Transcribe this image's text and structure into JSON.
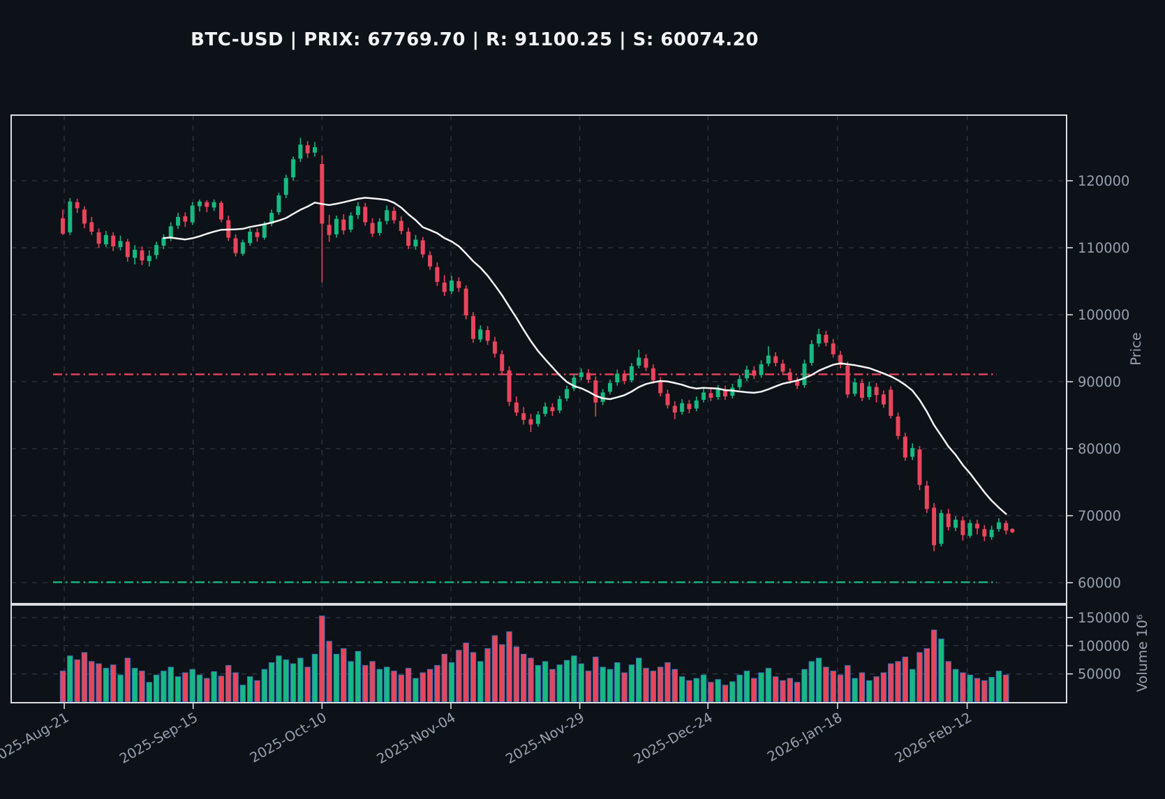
{
  "title": "BTC-USD | PRIX: 67769.70 | R: 91100.25 | S: 60074.20",
  "chart_data": {
    "type": "candlestick",
    "symbol": "BTC-USD",
    "last_price": 67769.7,
    "resistance": 91100.25,
    "support": 60074.2,
    "ma_window": 15,
    "legend_position": "none",
    "grid": true,
    "price_axis": {
      "label": "Price",
      "ticks": [
        120000,
        110000,
        100000,
        90000,
        80000,
        70000,
        60000
      ],
      "range": [
        56900,
        129800
      ]
    },
    "volume_axis": {
      "label": "Volume",
      "unit": "10⁶",
      "ticks": [
        150000,
        100000,
        50000
      ],
      "range": [
        0,
        174000
      ]
    },
    "x_axis": {
      "tick_labels": [
        "2025-Aug-21",
        "2025-Sep-15",
        "2025-Oct-10",
        "2025-Nov-04",
        "2025-Nov-29",
        "2025-Dec-24",
        "2026-Jan-18",
        "2026-Feb-12"
      ],
      "tick_positions_bar_index": [
        0.2,
        18.1,
        36.0,
        53.9,
        71.8,
        89.6,
        107.6,
        125.6
      ]
    },
    "colors": {
      "up": "#17b981",
      "down": "#e8455c",
      "ma_line": "#f5f5f5",
      "resistance": "#e8455c",
      "support": "#17b981",
      "background": "#0d1118",
      "grid": "#363c49",
      "text": "#97a1b0",
      "border": "#dcdde1",
      "volume_edge": "#3574b5"
    },
    "candles": [
      [
        114400,
        115700,
        111900,
        112100
      ],
      [
        112300,
        117400,
        111900,
        116900
      ],
      [
        116800,
        117300,
        115200,
        115900
      ],
      [
        115700,
        116200,
        112900,
        113600
      ],
      [
        113800,
        114600,
        111900,
        112400
      ],
      [
        112300,
        112900,
        110000,
        110600
      ],
      [
        110500,
        112500,
        110100,
        111900
      ],
      [
        111800,
        112300,
        109500,
        110200
      ],
      [
        110100,
        111800,
        109600,
        111000
      ],
      [
        110900,
        111300,
        107900,
        108600
      ],
      [
        108500,
        110400,
        107500,
        109700
      ],
      [
        109600,
        110200,
        107400,
        108100
      ],
      [
        108000,
        109600,
        107200,
        108800
      ],
      [
        108900,
        110900,
        108300,
        110400
      ],
      [
        110300,
        112000,
        109800,
        111500
      ],
      [
        111400,
        113800,
        111000,
        113200
      ],
      [
        113300,
        115200,
        112800,
        114600
      ],
      [
        114700,
        115300,
        113100,
        113900
      ],
      [
        113800,
        116800,
        113400,
        116300
      ],
      [
        116200,
        117200,
        115400,
        116900
      ],
      [
        116800,
        117100,
        115300,
        116100
      ],
      [
        116000,
        117200,
        115500,
        116800
      ],
      [
        116700,
        117000,
        113800,
        114200
      ],
      [
        114100,
        114800,
        111000,
        111500
      ],
      [
        111400,
        112000,
        108700,
        109200
      ],
      [
        109100,
        111200,
        108800,
        110800
      ],
      [
        110700,
        112900,
        110300,
        112400
      ],
      [
        112300,
        112900,
        110900,
        111600
      ],
      [
        111500,
        113900,
        111200,
        113500
      ],
      [
        113600,
        115700,
        113200,
        115200
      ],
      [
        115300,
        118200,
        114900,
        117800
      ],
      [
        117900,
        120900,
        117400,
        120400
      ],
      [
        120500,
        123600,
        120000,
        123200
      ],
      [
        123300,
        126400,
        122800,
        125400
      ],
      [
        125300,
        125900,
        123400,
        124100
      ],
      [
        124200,
        125800,
        123600,
        125000
      ],
      [
        122500,
        123800,
        104800,
        113600
      ],
      [
        113400,
        114900,
        110900,
        111900
      ],
      [
        112000,
        114800,
        111500,
        114300
      ],
      [
        114200,
        115000,
        112000,
        112600
      ],
      [
        112700,
        115300,
        112300,
        114800
      ],
      [
        114900,
        116800,
        114300,
        116200
      ],
      [
        116100,
        116700,
        113300,
        113800
      ],
      [
        113700,
        114400,
        111600,
        112100
      ],
      [
        112200,
        114400,
        111800,
        113900
      ],
      [
        114000,
        116300,
        113500,
        115600
      ],
      [
        115500,
        116100,
        113600,
        114100
      ],
      [
        114000,
        114700,
        112000,
        112500
      ],
      [
        112400,
        113000,
        109800,
        110300
      ],
      [
        110200,
        111900,
        109700,
        111200
      ],
      [
        111100,
        111600,
        108500,
        109000
      ],
      [
        108900,
        109500,
        106700,
        107200
      ],
      [
        107100,
        107800,
        104300,
        104900
      ],
      [
        104800,
        105900,
        102800,
        103400
      ],
      [
        103500,
        105800,
        103100,
        105100
      ],
      [
        105000,
        105600,
        103400,
        104000
      ],
      [
        103900,
        104400,
        99300,
        99900
      ],
      [
        99800,
        100400,
        95800,
        96400
      ],
      [
        96300,
        98400,
        95900,
        97800
      ],
      [
        97700,
        98300,
        95500,
        96100
      ],
      [
        96000,
        96700,
        93600,
        94200
      ],
      [
        94100,
        94700,
        91000,
        91600
      ],
      [
        91700,
        92300,
        86400,
        87000
      ],
      [
        86900,
        87800,
        84900,
        85400
      ],
      [
        85300,
        86200,
        83600,
        84300
      ],
      [
        84400,
        85200,
        82500,
        83600
      ],
      [
        83700,
        85600,
        83300,
        85100
      ],
      [
        85200,
        86900,
        84800,
        86300
      ],
      [
        86200,
        86800,
        84900,
        85600
      ],
      [
        85700,
        87900,
        85300,
        87400
      ],
      [
        87500,
        89400,
        87100,
        88900
      ],
      [
        89000,
        91100,
        88600,
        90600
      ],
      [
        90700,
        92000,
        90200,
        91400
      ],
      [
        91300,
        91900,
        89800,
        90300
      ],
      [
        90200,
        90800,
        84800,
        86900
      ],
      [
        87000,
        88900,
        86500,
        88400
      ],
      [
        88500,
        90300,
        88100,
        89800
      ],
      [
        89900,
        91800,
        89400,
        91200
      ],
      [
        91100,
        91700,
        89600,
        90100
      ],
      [
        90200,
        92800,
        89900,
        92300
      ],
      [
        92400,
        94800,
        92000,
        93600
      ],
      [
        93500,
        94100,
        91600,
        92100
      ],
      [
        92000,
        92600,
        89700,
        90200
      ],
      [
        90100,
        90700,
        87800,
        88300
      ],
      [
        88200,
        88800,
        86000,
        86500
      ],
      [
        86400,
        87100,
        84400,
        85400
      ],
      [
        85500,
        87400,
        85100,
        86800
      ],
      [
        86700,
        87300,
        85300,
        85900
      ],
      [
        86000,
        87800,
        85600,
        87200
      ],
      [
        87300,
        89100,
        86900,
        88400
      ],
      [
        88300,
        89000,
        87100,
        87600
      ],
      [
        87700,
        89500,
        87300,
        88900
      ],
      [
        88800,
        89400,
        87300,
        87800
      ],
      [
        87900,
        89700,
        87500,
        89100
      ],
      [
        89200,
        91000,
        88800,
        90400
      ],
      [
        90500,
        92400,
        90100,
        91800
      ],
      [
        91700,
        92300,
        90400,
        90900
      ],
      [
        91000,
        93200,
        90600,
        92600
      ],
      [
        92700,
        95300,
        92300,
        93900
      ],
      [
        93800,
        94400,
        92300,
        92800
      ],
      [
        92700,
        93300,
        91000,
        91500
      ],
      [
        91400,
        92000,
        89700,
        90200
      ],
      [
        90100,
        90700,
        88900,
        89400
      ],
      [
        89500,
        93300,
        89100,
        92700
      ],
      [
        92800,
        96200,
        92400,
        95600
      ],
      [
        95700,
        97900,
        95200,
        97100
      ],
      [
        97000,
        97600,
        95300,
        95800
      ],
      [
        95700,
        96400,
        93600,
        94100
      ],
      [
        94000,
        94600,
        92000,
        92500
      ],
      [
        92400,
        93000,
        87600,
        88100
      ],
      [
        88200,
        90500,
        87800,
        89900
      ],
      [
        89800,
        90400,
        87100,
        87600
      ],
      [
        87700,
        90000,
        87300,
        89300
      ],
      [
        89200,
        89800,
        86900,
        88000
      ],
      [
        88100,
        88700,
        86100,
        86600
      ],
      [
        88800,
        89300,
        84500,
        84900
      ],
      [
        84800,
        85400,
        81400,
        81900
      ],
      [
        81800,
        82400,
        78200,
        78700
      ],
      [
        78800,
        80800,
        78300,
        80100
      ],
      [
        79900,
        80400,
        73800,
        74600
      ],
      [
        74500,
        75200,
        70400,
        71000
      ],
      [
        71200,
        71900,
        64700,
        65600
      ],
      [
        65800,
        70900,
        65400,
        70400
      ],
      [
        70300,
        71000,
        67800,
        68300
      ],
      [
        68200,
        69900,
        67700,
        69400
      ],
      [
        69300,
        69900,
        66300,
        67100
      ],
      [
        67000,
        69400,
        66700,
        68900
      ],
      [
        68800,
        69400,
        67200,
        68100
      ],
      [
        68000,
        68600,
        66200,
        66900
      ],
      [
        66800,
        68500,
        66400,
        67900
      ],
      [
        68000,
        69600,
        67600,
        69000
      ],
      [
        68900,
        69300,
        67200,
        67769.7
      ]
    ],
    "volumes": [
      55000,
      82000,
      75000,
      88000,
      72000,
      68000,
      60000,
      66000,
      48000,
      78000,
      60000,
      55000,
      35000,
      48000,
      55000,
      62000,
      45000,
      52000,
      58000,
      48000,
      42000,
      54000,
      46000,
      65000,
      52000,
      30000,
      45000,
      38000,
      58000,
      70000,
      82000,
      75000,
      68000,
      78000,
      62000,
      85000,
      153000,
      108000,
      85000,
      95000,
      72000,
      90000,
      65000,
      72000,
      58000,
      62000,
      55000,
      48000,
      60000,
      42000,
      52000,
      58000,
      65000,
      85000,
      70000,
      92000,
      105000,
      88000,
      72000,
      95000,
      118000,
      102000,
      125000,
      98000,
      85000,
      78000,
      65000,
      72000,
      58000,
      66000,
      74000,
      82000,
      68000,
      55000,
      80000,
      62000,
      58000,
      70000,
      52000,
      66000,
      78000,
      60000,
      55000,
      62000,
      70000,
      58000,
      45000,
      38000,
      42000,
      48000,
      35000,
      40000,
      30000,
      36000,
      48000,
      55000,
      42000,
      52000,
      60000,
      45000,
      38000,
      42000,
      35000,
      58000,
      72000,
      78000,
      62000,
      55000,
      48000,
      65000,
      42000,
      52000,
      38000,
      45000,
      52000,
      68000,
      72000,
      80000,
      58000,
      88000,
      95000,
      128000,
      112000,
      72000,
      58000,
      52000,
      48000,
      42000,
      38000,
      44000,
      55000,
      48000
    ]
  }
}
